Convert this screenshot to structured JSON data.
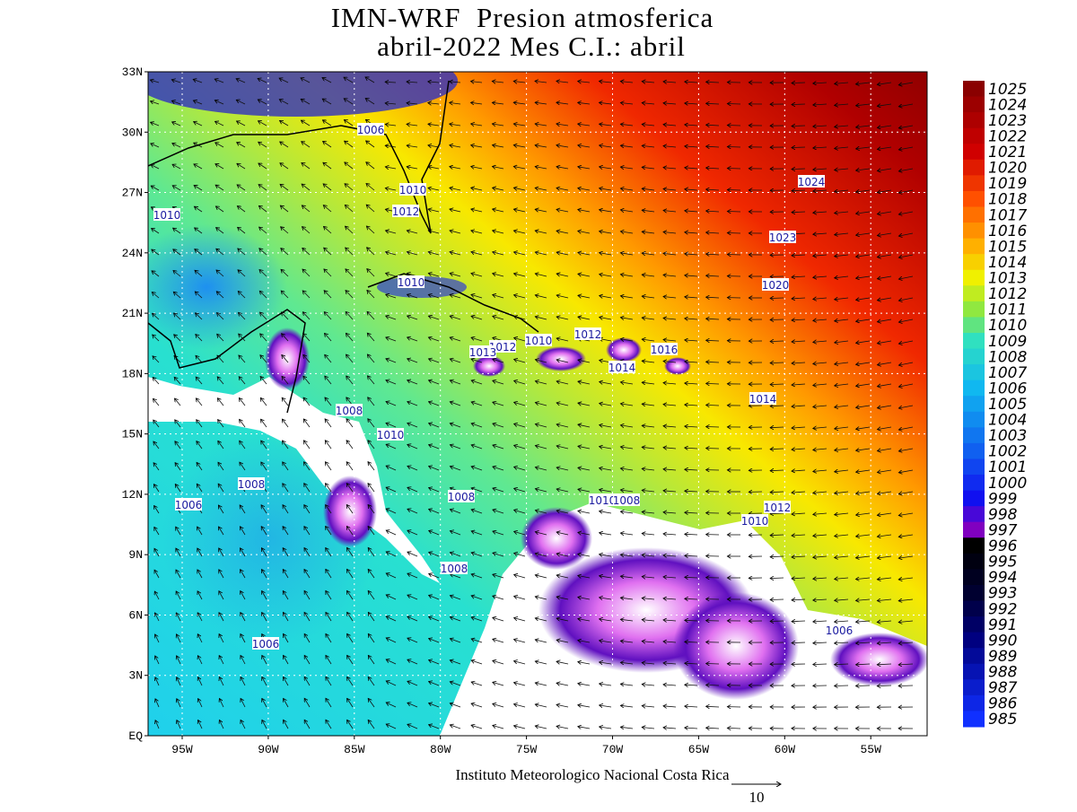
{
  "header": {
    "title": [
      "IMN-WRF  Presion atmosferica",
      "abril-2022 Mes C.I.: abril"
    ]
  },
  "axes": {
    "lat_labels": [
      "33N",
      "30N",
      "27N",
      "24N",
      "21N",
      "18N",
      "15N",
      "12N",
      "9N",
      "6N",
      "3N",
      "EQ"
    ],
    "lon_labels": [
      "95W",
      "90W",
      "85W",
      "80W",
      "75W",
      "70W",
      "65W",
      "60W",
      "55W"
    ]
  },
  "colorbar": {
    "labels": [
      "1025",
      "1024",
      "1023",
      "1022",
      "1021",
      "1020",
      "1019",
      "1018",
      "1017",
      "1016",
      "1015",
      "1014",
      "1013",
      "1012",
      "1011",
      "1010",
      "1009",
      "1008",
      "1007",
      "1006",
      "1005",
      "1004",
      "1003",
      "1002",
      "1001",
      "1000",
      "999",
      "998",
      "997",
      "996",
      "995",
      "994",
      "993",
      "992",
      "991",
      "990",
      "989",
      "988",
      "987",
      "986",
      "985"
    ]
  },
  "contour_labels": [
    "1006",
    "1010",
    "1012",
    "1010",
    "1024",
    "1023",
    "1020",
    "1010",
    "1012",
    "1010",
    "1012",
    "1013",
    "1014",
    "1016",
    "1014",
    "1008",
    "1010",
    "1008",
    "1006",
    "1008",
    "1010",
    "1008",
    "1012",
    "1010",
    "1008",
    "1006",
    "1006"
  ],
  "footer": {
    "credit": "Instituto Meteorologico Nacional Costa Rica",
    "vector_reference": "10"
  }
}
